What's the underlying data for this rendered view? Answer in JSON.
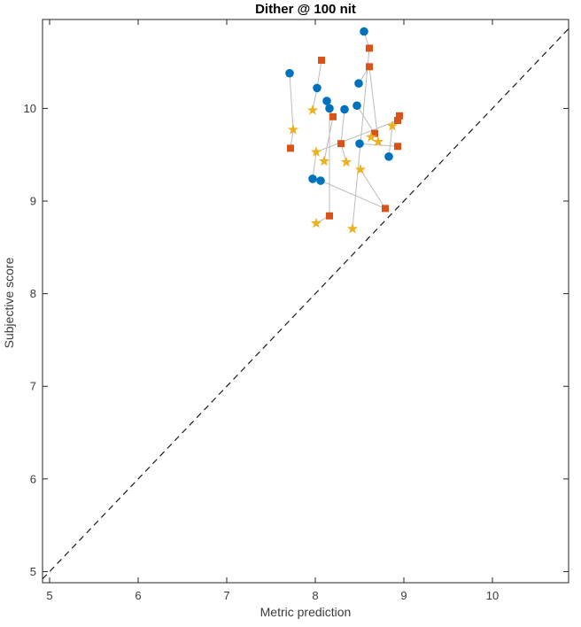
{
  "figure": {
    "title": "Dither @ 100 nit",
    "xlabel": "Metric prediction",
    "ylabel": "Subjective score"
  },
  "chart_data": {
    "type": "scatter",
    "title": "Dither @ 100 nit",
    "xlabel": "Metric prediction",
    "ylabel": "Subjective score",
    "xlim": [
      4.92,
      10.86
    ],
    "ylim": [
      4.88,
      10.96
    ],
    "xticks": [
      5,
      6,
      7,
      8,
      9,
      10
    ],
    "yticks": [
      5,
      6,
      7,
      8,
      9,
      10
    ],
    "grid": false,
    "legend_position": "none",
    "axis_color": "#262626",
    "connector_color": "#bcbcbc",
    "reference_line": {
      "type": "identity",
      "style": "dashed",
      "color": "#1a1a1a",
      "from": [
        4.92,
        4.92
      ],
      "to": [
        10.86,
        10.86
      ]
    },
    "series": [
      {
        "name": "blue-circles",
        "marker": "circle",
        "color": "#0072BD",
        "points": [
          [
            8.55,
            10.83
          ],
          [
            7.71,
            10.38
          ],
          [
            8.49,
            10.27
          ],
          [
            8.02,
            10.22
          ],
          [
            8.13,
            10.08
          ],
          [
            8.47,
            10.03
          ],
          [
            8.16,
            10.0
          ],
          [
            8.33,
            9.99
          ],
          [
            8.5,
            9.62
          ],
          [
            8.83,
            9.48
          ],
          [
            7.97,
            9.24
          ],
          [
            8.06,
            9.22
          ]
        ]
      },
      {
        "name": "orange-squares",
        "marker": "square",
        "color": "#D95319",
        "points": [
          [
            8.61,
            10.65
          ],
          [
            8.07,
            10.52
          ],
          [
            8.61,
            10.45
          ],
          [
            8.95,
            9.92
          ],
          [
            8.2,
            9.91
          ],
          [
            8.93,
            9.87
          ],
          [
            8.67,
            9.73
          ],
          [
            8.29,
            9.62
          ],
          [
            8.93,
            9.59
          ],
          [
            7.72,
            9.57
          ],
          [
            8.79,
            8.92
          ],
          [
            8.16,
            8.84
          ]
        ]
      },
      {
        "name": "yellow-stars",
        "marker": "star",
        "color": "#EDB120",
        "points": [
          [
            7.97,
            9.98
          ],
          [
            8.87,
            9.81
          ],
          [
            7.75,
            9.77
          ],
          [
            8.71,
            9.64
          ],
          [
            8.63,
            9.69
          ],
          [
            8.01,
            9.53
          ],
          [
            8.35,
            9.42
          ],
          [
            8.1,
            9.43
          ],
          [
            8.51,
            9.34
          ],
          [
            8.01,
            8.76
          ],
          [
            8.42,
            8.7
          ]
        ]
      }
    ],
    "connections": [
      {
        "points": [
          [
            8.07,
            10.52
          ],
          [
            8.02,
            10.22
          ],
          [
            7.97,
            9.98
          ]
        ]
      },
      {
        "points": [
          [
            7.71,
            10.38
          ],
          [
            7.75,
            9.77
          ],
          [
            7.72,
            9.57
          ]
        ]
      },
      {
        "points": [
          [
            8.55,
            10.83
          ],
          [
            8.61,
            10.65
          ],
          [
            8.42,
            8.7
          ]
        ]
      },
      {
        "points": [
          [
            8.71,
            9.64
          ],
          [
            8.61,
            10.45
          ],
          [
            8.49,
            10.27
          ]
        ]
      },
      {
        "points": [
          [
            8.13,
            10.08
          ],
          [
            8.2,
            9.91
          ],
          [
            8.1,
            9.43
          ]
        ]
      },
      {
        "points": [
          [
            8.16,
            10.0
          ],
          [
            8.16,
            8.84
          ],
          [
            8.01,
            8.76
          ]
        ]
      },
      {
        "points": [
          [
            8.33,
            9.99
          ],
          [
            8.29,
            9.62
          ],
          [
            8.35,
            9.42
          ]
        ]
      },
      {
        "points": [
          [
            8.47,
            10.03
          ],
          [
            8.67,
            9.73
          ],
          [
            8.63,
            9.69
          ]
        ]
      },
      {
        "points": [
          [
            8.5,
            9.62
          ],
          [
            8.93,
            9.59
          ]
        ]
      },
      {
        "points": [
          [
            8.95,
            9.92
          ],
          [
            8.87,
            9.81
          ],
          [
            8.83,
            9.48
          ]
        ]
      },
      {
        "points": [
          [
            8.93,
            9.87
          ],
          [
            8.01,
            9.53
          ],
          [
            7.97,
            9.24
          ]
        ]
      },
      {
        "points": [
          [
            8.06,
            9.22
          ],
          [
            8.79,
            8.92
          ],
          [
            8.51,
            9.34
          ]
        ]
      }
    ]
  }
}
